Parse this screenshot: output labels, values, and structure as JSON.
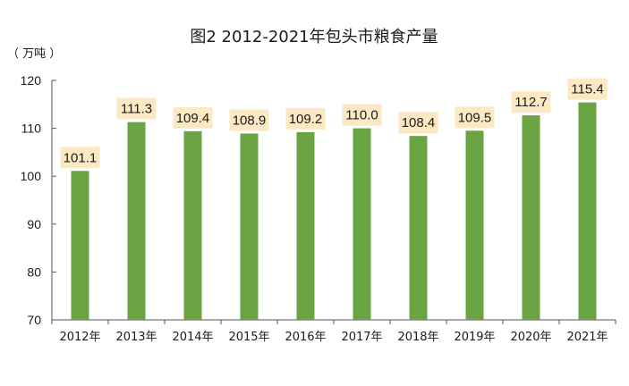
{
  "chart_data": {
    "type": "bar",
    "title": "图2  2012-2021年包头市粮食产量",
    "unit_label": "（ 万吨 ）",
    "categories": [
      "2012年",
      "2013年",
      "2014年",
      "2015年",
      "2016年",
      "2017年",
      "2018年",
      "2019年",
      "2020年",
      "2021年"
    ],
    "values": [
      101.1,
      111.3,
      109.4,
      108.9,
      109.2,
      110.0,
      108.4,
      109.5,
      112.7,
      115.4
    ],
    "data_labels": [
      "101.1",
      "111.3",
      "109.4",
      "108.9",
      "109.2",
      "110.0",
      "108.4",
      "109.5",
      "112.7",
      "115.4"
    ],
    "ylim": [
      70,
      120
    ],
    "yticks": [
      70,
      80,
      90,
      100,
      110,
      120
    ],
    "ytick_labels": [
      "70",
      "80",
      "90",
      "100",
      "110",
      "120"
    ],
    "grid": false,
    "legend": "none",
    "colors": {
      "bar": "#6aa342",
      "label_bg": "#fbe9c4",
      "axis": "#555555"
    }
  }
}
